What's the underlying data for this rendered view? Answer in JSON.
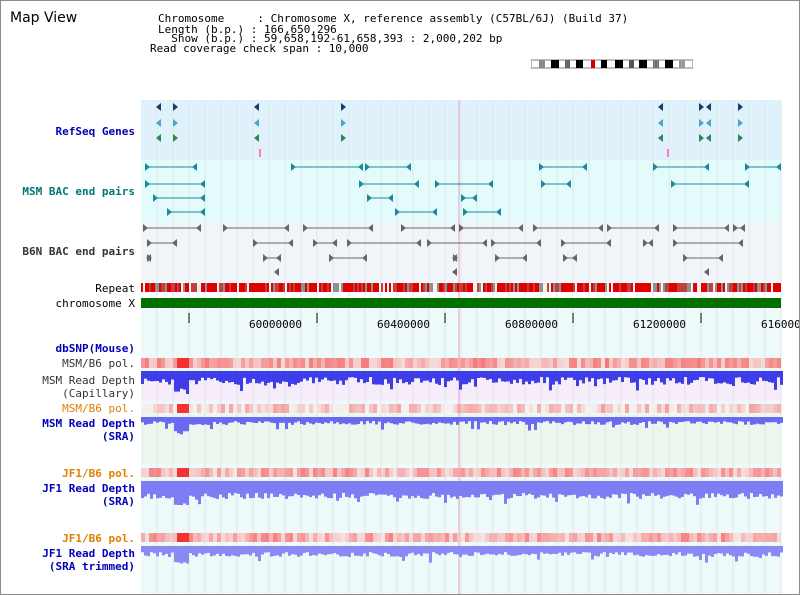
{
  "view": {
    "title": "Map View",
    "info_lines": [
      "Chromosome     : Chromosome X, reference assembly (C57BL/6J) (Build 37)",
      "Length (b.p.) : 166,650,296",
      "  Show (b.p.) : 59,658,192-61,658,393 : 2,000,202 bp",
      "Read coverage check span : 10,000"
    ]
  },
  "tracks": {
    "refseq": "RefSeq Genes",
    "msm_bac": "MSM BAC end pairs",
    "b6n_bac": "B6N BAC end pairs",
    "repeat": "Repeat",
    "chromosome": "chromosome X",
    "dbsnp": "dbSNP(Mouse)",
    "msm_b6_pol_1": "MSM/B6 pol.",
    "msm_depth_cap_1": "MSM Read Depth",
    "msm_depth_cap_2": "(Capillary)",
    "msm_b6_pol_2": "MSM/B6 pol.",
    "msm_depth_sra_1": "MSM Read Depth",
    "msm_depth_sra_2": "(SRA)",
    "jf1_b6_pol_1": "JF1/B6 pol.",
    "jf1_depth_sra_1": "JF1 Read Depth",
    "jf1_depth_sra_2": "(SRA)",
    "jf1_b6_pol_2": "JF1/B6 pol.",
    "jf1_depth_trim_1": "JF1 Read Depth",
    "jf1_depth_trim_2": "(SRA trimmed)"
  },
  "ruler": {
    "ticks": [
      "60000000",
      "60400000",
      "60800000",
      "61200000",
      "616000"
    ]
  },
  "colors": {
    "refseq_bg": "#dff1fb",
    "bac_bg": "#e3fbfb",
    "b6n_bg": "#f1f5f9",
    "depth_msm": "#3d3dea",
    "depth_jf1": "#7d7df4",
    "chromosome": "#007000",
    "repeat": "#e00000"
  }
}
